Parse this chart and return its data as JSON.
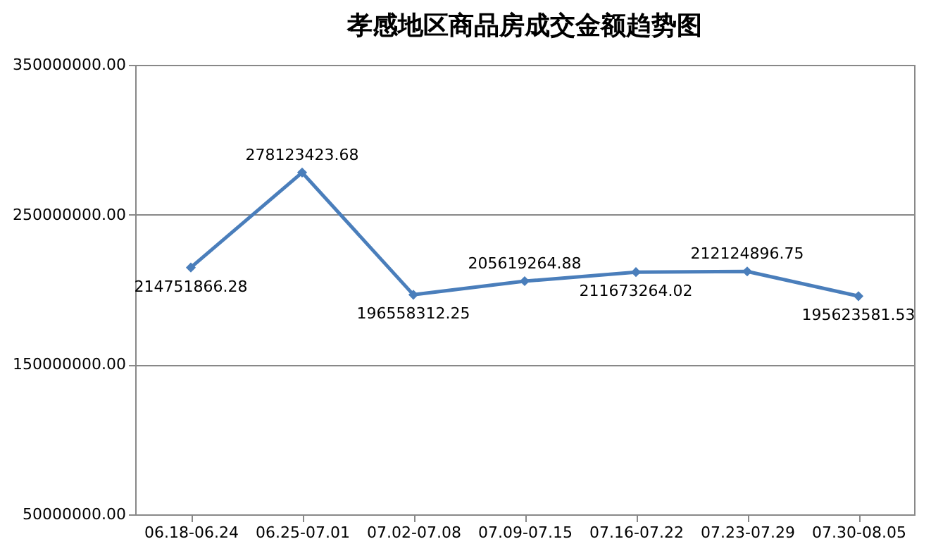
{
  "chart_data": {
    "type": "line",
    "title": "孝感地区商品房成交金额趋势图",
    "categories": [
      "06.18-06.24",
      "06.25-07.01",
      "07.02-07.08",
      "07.09-07.15",
      "07.16-07.22",
      "07.23-07.29",
      "07.30-08.05"
    ],
    "series": [
      {
        "color": "#4a7ebb",
        "values": [
          214751866.28,
          278123423.68,
          196558312.25,
          205619264.88,
          211673264.02,
          212124896.75,
          195623581.53
        ]
      }
    ],
    "ylim": [
      50000000,
      350000000
    ],
    "yticks": [
      {
        "value": 50000000,
        "label": "50000000.00"
      },
      {
        "value": 150000000,
        "label": "150000000.00"
      },
      {
        "value": 250000000,
        "label": "250000000.00"
      },
      {
        "value": 350000000,
        "label": "350000000.00"
      }
    ],
    "grid": "y",
    "marker": "diamond",
    "line_style": "solid",
    "data_labels": true
  }
}
